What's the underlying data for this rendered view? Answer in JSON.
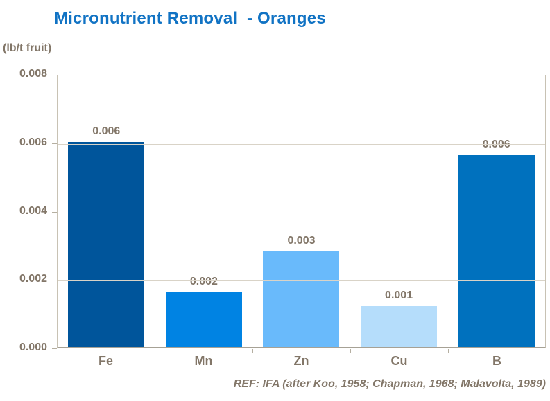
{
  "title": "Micronutrient Removal  - Oranges",
  "unit_label": "(lb/t fruit)",
  "footer": "REF: IFA (after Koo, 1958; Chapman, 1968; Malavolta, 1989)",
  "colors": {
    "title_text": "#1173C4",
    "axis_text": "#827668",
    "gridline": "#D9D3C7",
    "plot_border": "#C8C2B4",
    "bottom_axis": "#A6A195",
    "tick_mark": "#B5AFA1"
  },
  "chart_data": {
    "type": "bar",
    "title": "Micronutrient Removal - Oranges",
    "xlabel": "",
    "ylabel": "(lb/t fruit)",
    "categories": [
      "Fe",
      "Mn",
      "Zn",
      "Cu",
      "B"
    ],
    "values": [
      0.006,
      0.0016,
      0.0028,
      0.0012,
      0.0056
    ],
    "value_labels": [
      "0.006",
      "0.002",
      "0.003",
      "0.001",
      "0.006"
    ],
    "bar_colors": [
      "#00559B",
      "#0083E3",
      "#69BAFB",
      "#B5DDFB",
      "#0071BE"
    ],
    "ylim": [
      0,
      0.008
    ],
    "yticks": [
      0.008,
      0.006,
      0.004,
      0.002,
      0.0
    ],
    "ytick_labels": [
      "0.008",
      "0.006",
      "0.004",
      "0.002",
      "0.000"
    ],
    "grid": true,
    "legend": false,
    "annotation": "REF: IFA (after Koo, 1958; Chapman, 1968; Malavolta, 1989)"
  }
}
